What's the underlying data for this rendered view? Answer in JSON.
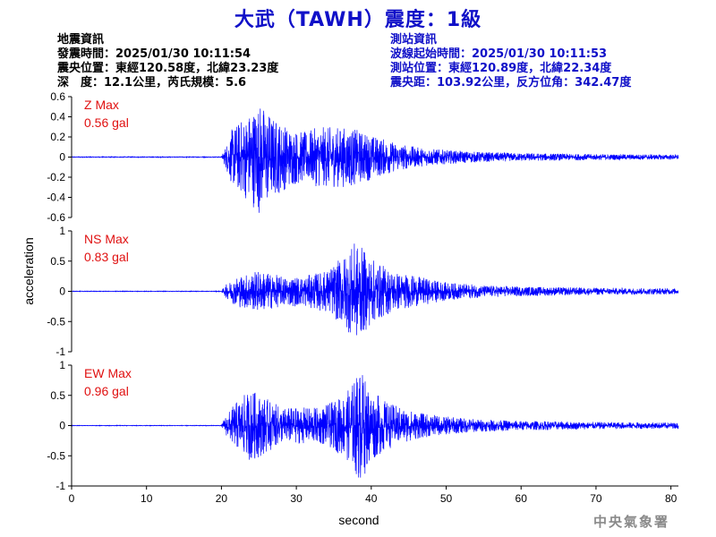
{
  "header": {
    "title": "大武（TAWH）震度：1級",
    "quake_info": {
      "heading": "地震資訊",
      "origin_time": "發震時間：2025/01/30 10:11:54",
      "epicenter": "震央位置：東經120.58度，北緯23.23度",
      "depth_magnitude": "深　度：12.1公里，芮氏規模：5.6"
    },
    "station_info": {
      "heading": "測站資訊",
      "wave_start": "波線起始時間：2025/01/30 10:11:53",
      "station_location": "測站位置：東經120.89度，北緯22.34度",
      "distance_azimuth": "震央距：103.92公里，反方位角：342.47度"
    }
  },
  "footer": {
    "logo_text": "中央氣象署"
  },
  "chart_data": {
    "type": "line",
    "xlabel": "second",
    "ylabel": "acceleration",
    "xlim": [
      0,
      81
    ],
    "xticks": [
      0,
      10,
      20,
      30,
      40,
      50,
      60,
      70,
      80
    ],
    "line_color": "#0000ff",
    "grid": false,
    "panels": [
      {
        "name": "Z",
        "max_label": "Z Max",
        "max_value_label": "0.56 gal",
        "max_gal": 0.56,
        "ylim": [
          -0.6,
          0.6
        ],
        "yticks": [
          0.6,
          0.4,
          0.2,
          0,
          -0.2,
          -0.4,
          -0.6
        ],
        "envelope": [
          [
            0,
            0.004
          ],
          [
            20,
            0.004
          ],
          [
            20.5,
            0.1
          ],
          [
            21.5,
            0.3
          ],
          [
            23,
            0.4
          ],
          [
            25,
            0.56
          ],
          [
            27,
            0.4
          ],
          [
            29,
            0.3
          ],
          [
            31,
            0.25
          ],
          [
            33,
            0.3
          ],
          [
            35,
            0.3
          ],
          [
            37,
            0.3
          ],
          [
            39,
            0.25
          ],
          [
            41,
            0.2
          ],
          [
            43,
            0.15
          ],
          [
            46,
            0.1
          ],
          [
            50,
            0.07
          ],
          [
            55,
            0.05
          ],
          [
            60,
            0.04
          ],
          [
            70,
            0.03
          ],
          [
            81,
            0.025
          ]
        ]
      },
      {
        "name": "NS",
        "max_label": "NS Max",
        "max_value_label": "0.83 gal",
        "max_gal": 0.83,
        "ylim": [
          -1,
          1
        ],
        "yticks": [
          1,
          0.5,
          0,
          -0.5,
          -1
        ],
        "envelope": [
          [
            0,
            0.005
          ],
          [
            20,
            0.005
          ],
          [
            20.5,
            0.1
          ],
          [
            22,
            0.25
          ],
          [
            25,
            0.35
          ],
          [
            28,
            0.25
          ],
          [
            31,
            0.25
          ],
          [
            34,
            0.35
          ],
          [
            36,
            0.55
          ],
          [
            38,
            0.83
          ],
          [
            40,
            0.55
          ],
          [
            42,
            0.4
          ],
          [
            44,
            0.3
          ],
          [
            46,
            0.25
          ],
          [
            50,
            0.15
          ],
          [
            55,
            0.1
          ],
          [
            60,
            0.08
          ],
          [
            70,
            0.06
          ],
          [
            81,
            0.05
          ]
        ]
      },
      {
        "name": "EW",
        "max_label": "EW Max",
        "max_value_label": "0.96 gal",
        "max_gal": 0.96,
        "ylim": [
          -1,
          1
        ],
        "yticks": [
          1,
          0.5,
          0,
          -0.5,
          -1
        ],
        "envelope": [
          [
            0,
            0.005
          ],
          [
            20,
            0.005
          ],
          [
            20.5,
            0.15
          ],
          [
            22,
            0.4
          ],
          [
            23,
            0.5
          ],
          [
            24,
            0.6
          ],
          [
            26,
            0.45
          ],
          [
            28,
            0.3
          ],
          [
            30,
            0.3
          ],
          [
            33,
            0.3
          ],
          [
            35,
            0.4
          ],
          [
            37,
            0.6
          ],
          [
            38.5,
            0.96
          ],
          [
            40,
            0.6
          ],
          [
            42,
            0.4
          ],
          [
            44,
            0.3
          ],
          [
            47,
            0.2
          ],
          [
            50,
            0.15
          ],
          [
            55,
            0.1
          ],
          [
            60,
            0.08
          ],
          [
            70,
            0.06
          ],
          [
            81,
            0.05
          ]
        ]
      }
    ]
  }
}
